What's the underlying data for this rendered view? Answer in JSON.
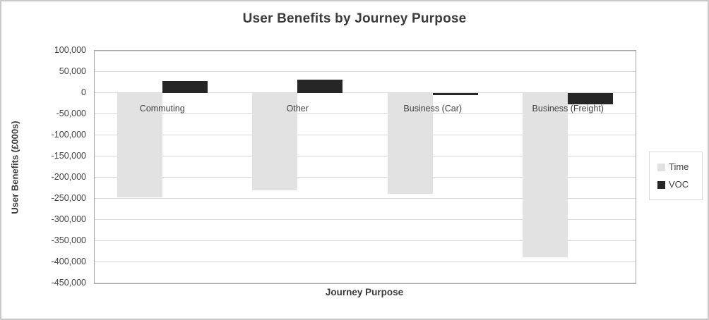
{
  "title": "User Benefits by Journey Purpose",
  "chart_data": {
    "type": "bar",
    "title": "User Benefits by Journey Purpose",
    "xlabel": "Journey Purpose",
    "ylabel": "User Benefits (£000s)",
    "categories": [
      "Commuting",
      "Other",
      "Business (Car)",
      "Business (Freight)"
    ],
    "series": [
      {
        "name": "Time",
        "color": "#e2e2e2",
        "values": [
          -246000,
          -230000,
          -238000,
          -389000
        ]
      },
      {
        "name": "VOC",
        "color": "#262626",
        "values": [
          28000,
          31000,
          -5000,
          -27000
        ]
      }
    ],
    "ylim": [
      -450000,
      100000
    ],
    "ytick_step": 50000,
    "ytick_labels": [
      "100,000",
      "50,000",
      "0",
      "-50,000",
      "-100,000",
      "-150,000",
      "-200,000",
      "-250,000",
      "-300,000",
      "-350,000",
      "-400,000",
      "-450,000"
    ],
    "grid": true,
    "legend_position": "right",
    "colors": {
      "grid": "#d9d9d9",
      "axis": "#a6a6a6",
      "text": "#404040",
      "title_text": "#3b3b3b"
    }
  }
}
